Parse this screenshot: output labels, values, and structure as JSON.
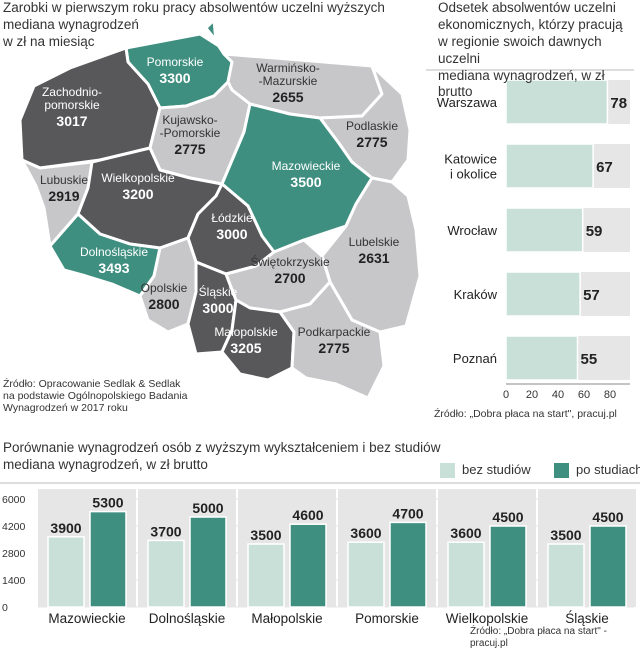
{
  "colors": {
    "dark": "#58585a",
    "light_gray": "#c7c7c9",
    "teal": "#3f8f80",
    "light_teal": "#c9e0d9",
    "track": "#e6e6e7"
  },
  "map_section": {
    "title": "Zarobki w pierwszym roku pracy absolwentów uczelni wyższych\nmediana wynagrodzeń\nw zł na miesiąc",
    "source": "Źródło: Opracowanie Sedlak & Sedlak\nna podstawie Ogólnopolskiego Badania\nWynagrodzeń w 2017 roku",
    "regions": [
      {
        "name": "Pomorskie",
        "value": "3300",
        "color": "teal"
      },
      {
        "name": "Zachodnio-\npomorskie",
        "value": "3017",
        "color": "dark"
      },
      {
        "name": "Warmińsko-\n-Mazurskie",
        "value": "2655",
        "color": "light_gray"
      },
      {
        "name": "Kujawsko-\n-Pomorskie",
        "value": "2775",
        "color": "light_gray"
      },
      {
        "name": "Podlaskie",
        "value": "2775",
        "color": "light_gray"
      },
      {
        "name": "Lubuskie",
        "value": "2919",
        "color": "light_gray"
      },
      {
        "name": "Wielkopolskie",
        "value": "3200",
        "color": "dark"
      },
      {
        "name": "Mazowieckie",
        "value": "3500",
        "color": "teal"
      },
      {
        "name": "Łódzkie",
        "value": "3000",
        "color": "dark"
      },
      {
        "name": "Lubelskie",
        "value": "2631",
        "color": "light_gray"
      },
      {
        "name": "Dolnośląskie",
        "value": "3493",
        "color": "teal"
      },
      {
        "name": "Opolskie",
        "value": "2800",
        "color": "light_gray"
      },
      {
        "name": "Śląskie",
        "value": "3000",
        "color": "dark"
      },
      {
        "name": "Świętokrzyskie",
        "value": "2700",
        "color": "light_gray"
      },
      {
        "name": "Małopolskie",
        "value": "3205",
        "color": "dark"
      },
      {
        "name": "Podkarpackie",
        "value": "2775",
        "color": "light_gray"
      }
    ]
  },
  "chart_data": [
    {
      "type": "bar",
      "orientation": "horizontal",
      "title": "Odsetek absolwentów uczelni\nekonomicznych, którzy pracują\nw regionie swoich dawnych uczelni\nmediana wynagrodzeń, w zł brutto",
      "categories": [
        "Warszawa",
        "Katowice\ni okolice",
        "Wrocław",
        "Kraków",
        "Poznań"
      ],
      "values": [
        78,
        67,
        59,
        57,
        55
      ],
      "xlim": [
        0,
        80
      ],
      "xticks": [
        "0",
        "20",
        "40",
        "60",
        "80"
      ],
      "source": "Źródło: „Dobra płaca na start\", pracuj.pl"
    },
    {
      "type": "bar",
      "title": "Porównanie wynagrodzeń osób z wyższym wykształceniem i bez studiów\nmediana wynagrodzeń, w zł brutto",
      "categories": [
        "Mazowieckie",
        "Dolnośląskie",
        "Małopolskie",
        "Pomorskie",
        "Wielkopolskie",
        "Śląskie"
      ],
      "series": [
        {
          "name": "bez studiów",
          "values": [
            3900,
            3700,
            3500,
            3600,
            3600,
            3500
          ],
          "color": "light_teal"
        },
        {
          "name": "po studiach",
          "values": [
            5300,
            5000,
            4600,
            4700,
            4500,
            4500
          ],
          "color": "teal"
        }
      ],
      "ylim": [
        0,
        6000
      ],
      "yticks": [
        "6000",
        "4200",
        "2800",
        "1400",
        "0"
      ],
      "legend": "top-right",
      "source": "Źródło: „Dobra płaca na start\" - pracuj.pl"
    }
  ]
}
